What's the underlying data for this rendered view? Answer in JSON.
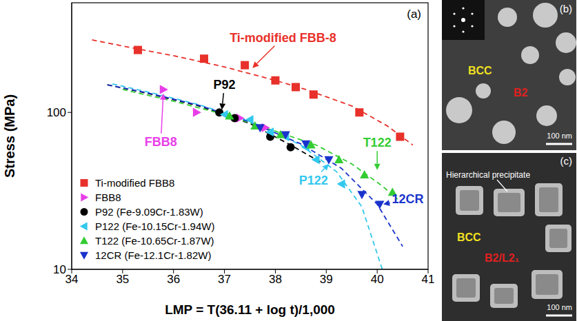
{
  "chart_data": {
    "type": "scatter",
    "panel_label": "(a)",
    "x_label": "LMP = T(36.11 + log t)/1,000",
    "y_label": "Stress (MPa)",
    "xlim": [
      34,
      41
    ],
    "xticks": [
      34,
      35,
      36,
      37,
      38,
      39,
      40,
      41
    ],
    "ylim": [
      10,
      500
    ],
    "yticks": [
      10,
      100
    ],
    "log": "y",
    "legend": "lower left",
    "series": [
      {
        "name": "Ti-modified FBB8",
        "color": "#e8312a",
        "marker": "square",
        "line_style": "dashed",
        "x": [
          35.3,
          36.6,
          37.4,
          38.0,
          38.4,
          38.75,
          39.65,
          40.45
        ],
        "values": [
          250,
          220,
          200,
          160,
          145,
          130,
          100,
          70
        ],
        "fit": {
          "x": [
            34.4,
            35.0,
            36.0,
            37.0,
            38.0,
            38.6,
            39.5,
            40.2,
            40.7
          ],
          "values": [
            290,
            265,
            230,
            195,
            160,
            140,
            110,
            82,
            62
          ]
        }
      },
      {
        "name": "FBB8",
        "color": "#e83ee8",
        "marker": "triangle-right",
        "x": [
          35.8,
          36.45,
          37.3,
          37.8
        ],
        "values": [
          140,
          100,
          92,
          80
        ]
      },
      {
        "name": "P92 (Fe-9.09Cr-1.83W)",
        "color": "#000000",
        "marker": "circle",
        "line_style": "dashed",
        "x": [
          36.9,
          37.2,
          37.9,
          38.3
        ],
        "values": [
          100,
          92,
          70,
          60
        ],
        "fit": {
          "x": [
            34.7,
            35.5,
            36.5,
            37.5,
            38.3,
            38.9
          ],
          "values": [
            150,
            132,
            110,
            85,
            62,
            48
          ]
        }
      },
      {
        "name": "P122 (Fe-10.15Cr-1.94W)",
        "color": "#33c8ee",
        "marker": "triangle-left",
        "line_style": "dashed",
        "x": [
          37.0,
          37.5,
          37.9,
          38.2,
          38.6,
          38.8,
          39.3
        ],
        "values": [
          97,
          90,
          75,
          70,
          60,
          50,
          35
        ],
        "fit": {
          "x": [
            34.8,
            35.5,
            36.5,
            37.5,
            38.5,
            39.2,
            39.7,
            40.1
          ],
          "values": [
            152,
            135,
            112,
            88,
            62,
            42,
            25,
            10
          ]
        }
      },
      {
        "name": "T122 (Fe-10.65Cr-1.87W)",
        "color": "#33cc33",
        "marker": "triangle",
        "line_style": "dashed",
        "x": [
          37.1,
          37.6,
          38.1,
          38.7,
          39.25,
          39.75,
          40.3
        ],
        "values": [
          95,
          82,
          72,
          62,
          50,
          40,
          31
        ],
        "fit": {
          "x": [
            35.0,
            36.0,
            37.0,
            38.0,
            38.8,
            39.5,
            40.1,
            40.4
          ],
          "values": [
            140,
            118,
            97,
            76,
            62,
            47,
            34,
            28
          ]
        }
      },
      {
        "name": "12CR (Fe-12.1Cr-1.82W)",
        "color": "#1a33cc",
        "marker": "triangle-down",
        "line_style": "dashed",
        "x": [
          37.7,
          38.2,
          38.6,
          39.05,
          39.7,
          40.05
        ],
        "values": [
          80,
          72,
          63,
          50,
          30,
          26
        ],
        "fit": {
          "x": [
            34.7,
            35.5,
            36.5,
            37.5,
            38.5,
            39.3,
            40.0,
            40.5
          ],
          "values": [
            150,
            133,
            111,
            87,
            63,
            44,
            26,
            14
          ]
        }
      }
    ],
    "annotations": [
      {
        "text": "Ti-modified FBB-8",
        "color": "#e8312a",
        "x": 38.15,
        "y": 300,
        "arrow_to": [
          37.55,
          192
        ]
      },
      {
        "text": "P92",
        "color": "#000000",
        "x": 37.0,
        "y": 150,
        "arrow_to": [
          36.95,
          104
        ]
      },
      {
        "text": "FBB8",
        "color": "#e83ee8",
        "x": 35.75,
        "y": 65,
        "arrow_to": [
          35.8,
          132
        ]
      },
      {
        "text": "T122",
        "color": "#33cc33",
        "x": 40.0,
        "y": 64,
        "arrow_to": [
          40.0,
          43
        ]
      },
      {
        "text": "P122",
        "color": "#33c8ee",
        "x": 38.75,
        "y": 37,
        "arrow_to": [
          39.05,
          47
        ]
      },
      {
        "text": "12CR",
        "color": "#1a33cc",
        "x": 40.6,
        "y": 28,
        "arrow_to": [
          40.12,
          26
        ]
      }
    ]
  },
  "panels": [
    {
      "label": "(b)",
      "scale_bar": "100 nm",
      "texts": [
        {
          "text": "BCC",
          "color": "#f0e020"
        },
        {
          "text": "B2",
          "color": "#e02020"
        }
      ]
    },
    {
      "label": "(c)",
      "scale_bar": "100 nm",
      "texts": [
        {
          "text": "Hierarchical precipitate",
          "color": "#ffffff"
        },
        {
          "text": "BCC",
          "color": "#f0e020"
        },
        {
          "text": "B2/L2₁",
          "color": "#e02020"
        }
      ]
    }
  ]
}
